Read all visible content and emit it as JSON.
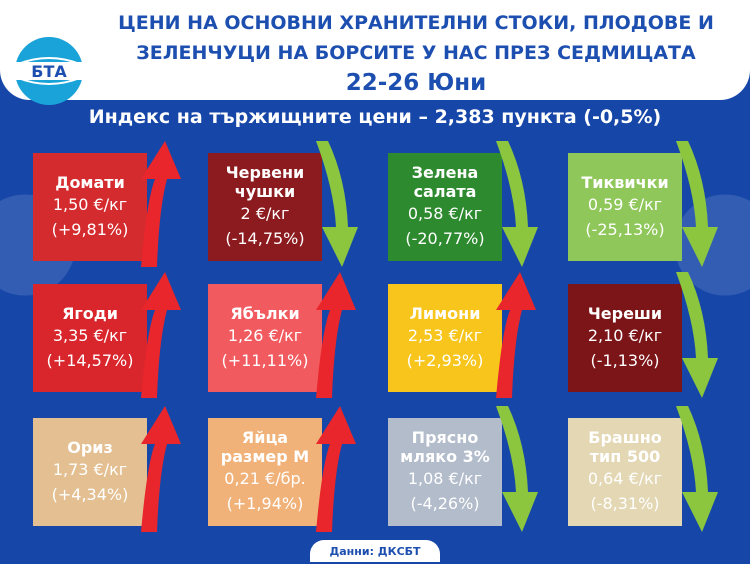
{
  "header": {
    "title_line1": "ЦЕНИ НА ОСНОВНИ ХРАНИТЕЛНИ СТОКИ, ПЛОДОВЕ И",
    "title_line2": "ЗЕЛЕНЧУЦИ НА БОРСИТЕ У НАС ПРЕЗ СЕДМИЦАТА",
    "date": "22-26 Юни",
    "logo_text": "БТА"
  },
  "subtitle": "Индекс на тържищните цени – 2,383 пункта (-0,5%)",
  "footer": "Данни: ДКСБТ",
  "colors": {
    "background": "#1546a8",
    "up_arrow": "#e8262b",
    "down_arrow": "#8cc63f"
  },
  "tiles": [
    {
      "name": "Домати",
      "price": "1,50 €/кг",
      "change": "(+9,81%)",
      "direction": "up",
      "color": "#d42b2f"
    },
    {
      "name": "Червени чушки",
      "price": "2 €/кг",
      "change": "(-14,75%)",
      "direction": "down",
      "color": "#8c1b1f"
    },
    {
      "name": "Зелена салата",
      "price": "0,58 €/кг",
      "change": "(-20,77%)",
      "direction": "down",
      "color": "#2d8a2e"
    },
    {
      "name": "Тиквички",
      "price": "0,59 €/кг",
      "change": "(-25,13%)",
      "direction": "down",
      "color": "#8fc75a"
    },
    {
      "name": "Ягоди",
      "price": "3,35 €/кг",
      "change": "(+14,57%)",
      "direction": "up",
      "color": "#d8262c"
    },
    {
      "name": "Ябълки",
      "price": "1,26 €/кг",
      "change": "(+11,11%)",
      "direction": "up",
      "color": "#f15a5e"
    },
    {
      "name": "Лимони",
      "price": "2,53 €/кг",
      "change": "(+2,93%)",
      "direction": "up",
      "color": "#f7c51c"
    },
    {
      "name": "Череши",
      "price": "2,10 €/кг",
      "change": "(-1,13%)",
      "direction": "down",
      "color": "#7c1518"
    },
    {
      "name": "Ориз",
      "price": "1,73 €/кг",
      "change": "(+4,34%)",
      "direction": "up",
      "color": "#e3bf91"
    },
    {
      "name": "Яйца размер М",
      "price": "0,21 €/бр.",
      "change": "(+1,94%)",
      "direction": "up",
      "color": "#f1b27a"
    },
    {
      "name": "Прясно мляко 3%",
      "price": "1,08 €/кг",
      "change": "(-4,26%)",
      "direction": "down",
      "color": "#b2bccb"
    },
    {
      "name": "Брашно тип 500",
      "price": "0,64 €/кг",
      "change": "(-8,31%)",
      "direction": "down",
      "color": "#e3d7b4"
    }
  ]
}
